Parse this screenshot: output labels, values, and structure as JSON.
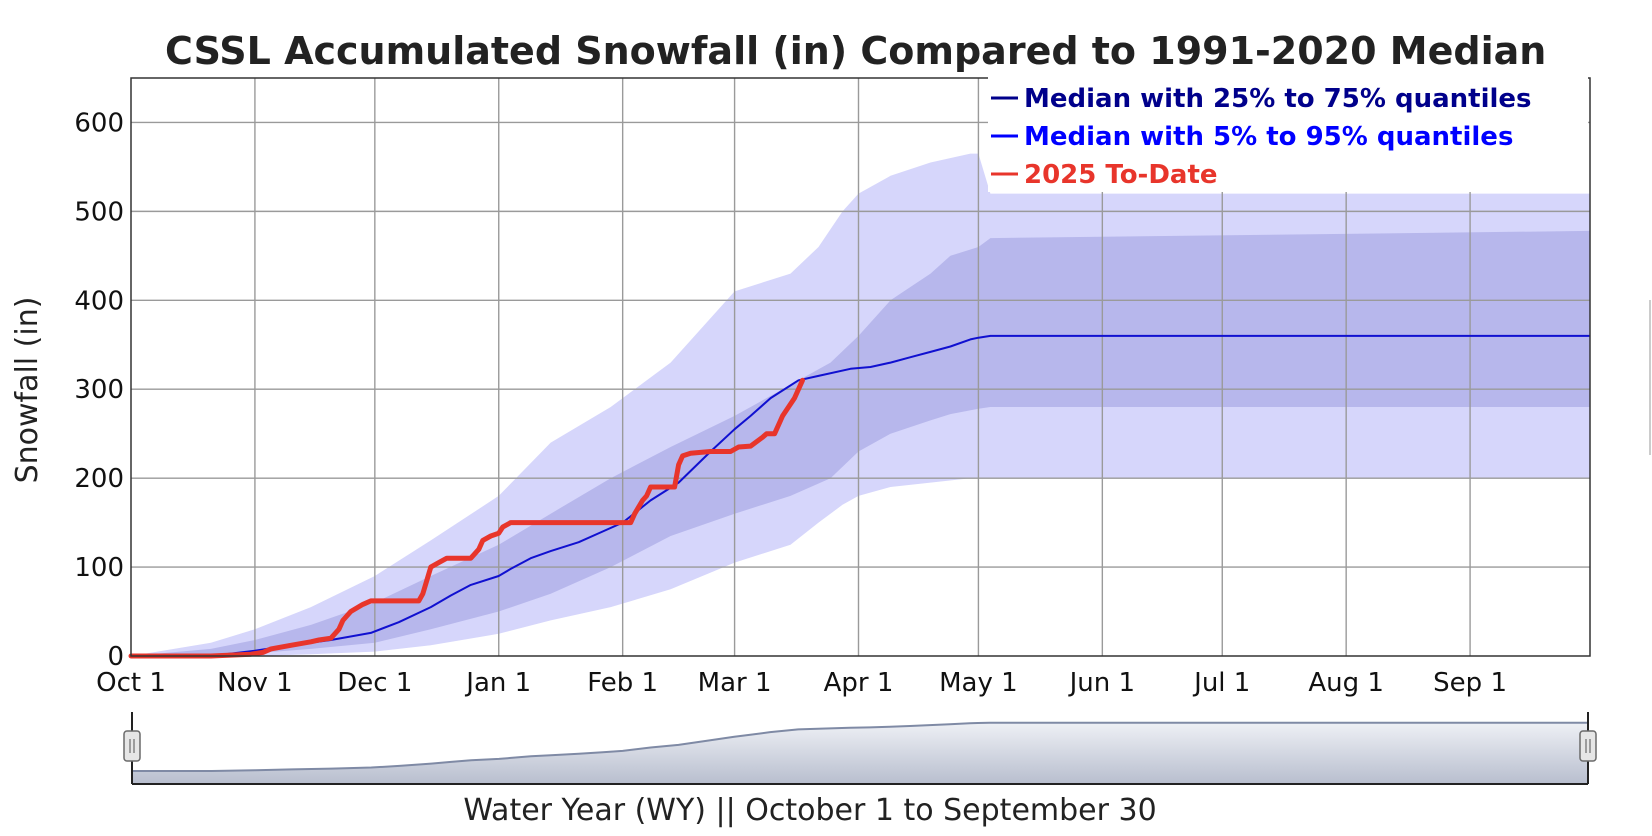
{
  "chart_data": {
    "type": "line",
    "title": "CSSL Accumulated Snowfall (in) Compared to 1991-2020 Median",
    "ylabel": "Snowfall (in)",
    "xlabel": "Water Year (WY) || October 1 to September 30",
    "ylim": [
      0,
      650
    ],
    "xlim": [
      0,
      365
    ],
    "yticks": [
      0,
      100,
      200,
      300,
      400,
      500,
      600
    ],
    "xticks": [
      {
        "label": "Oct 1",
        "day": 0
      },
      {
        "label": "Nov 1",
        "day": 31
      },
      {
        "label": "Dec 1",
        "day": 61
      },
      {
        "label": "Jan 1",
        "day": 92
      },
      {
        "label": "Feb 1",
        "day": 123
      },
      {
        "label": "Mar 1",
        "day": 151
      },
      {
        "label": "Apr 1",
        "day": 182
      },
      {
        "label": "May 1",
        "day": 212
      },
      {
        "label": "Jun 1",
        "day": 243
      },
      {
        "label": "Jul 1",
        "day": 273
      },
      {
        "label": "Aug 1",
        "day": 304
      },
      {
        "label": "Sep 1",
        "day": 335
      }
    ],
    "legend_position": "top-right",
    "legend": [
      {
        "label": "Median with 25% to 75% quantiles",
        "color": "#00008b"
      },
      {
        "label": "Median with 5% to 95% quantiles",
        "color": "#0000ff"
      },
      {
        "label": "2025 To-Date",
        "color": "#e8352b"
      }
    ],
    "colors": {
      "band_5_95": "#d6d6fb",
      "band_25_75": "#b7b7ec",
      "median": "#1010d0",
      "current": "#e8352b",
      "navigator_fill": "#d3d7e2",
      "navigator_line": "#7f8aa5"
    },
    "series": [
      {
        "name": "Median",
        "days": [
          0,
          20,
          31,
          40,
          50,
          60,
          67,
          75,
          80,
          85,
          92,
          95,
          100,
          105,
          112,
          118,
          123,
          130,
          137,
          145,
          151,
          155,
          160,
          167,
          172,
          180,
          185,
          190,
          195,
          200,
          205,
          210,
          212,
          215,
          365
        ],
        "values": [
          0,
          0,
          6,
          12,
          18,
          26,
          38,
          55,
          68,
          80,
          90,
          98,
          110,
          118,
          128,
          140,
          150,
          175,
          195,
          230,
          255,
          270,
          290,
          310,
          315,
          323,
          325,
          330,
          336,
          342,
          348,
          356,
          358,
          360,
          360
        ]
      },
      {
        "name": "Band 25-75",
        "days": [
          0,
          20,
          31,
          45,
          61,
          75,
          92,
          105,
          120,
          135,
          151,
          165,
          175,
          182,
          190,
          200,
          205,
          212,
          215,
          365
        ],
        "upper": [
          0,
          8,
          18,
          35,
          60,
          90,
          125,
          160,
          200,
          235,
          270,
          305,
          330,
          360,
          400,
          430,
          450,
          460,
          470,
          478
        ],
        "lower": [
          0,
          0,
          3,
          8,
          15,
          30,
          50,
          70,
          100,
          135,
          160,
          180,
          200,
          230,
          250,
          265,
          272,
          278,
          280,
          280
        ]
      },
      {
        "name": "Band 5-95",
        "days": [
          0,
          20,
          31,
          45,
          61,
          75,
          92,
          105,
          120,
          135,
          151,
          165,
          172,
          178,
          182,
          190,
          200,
          210,
          212,
          215,
          365
        ],
        "upper": [
          0,
          15,
          30,
          55,
          90,
          130,
          180,
          240,
          280,
          330,
          410,
          430,
          460,
          500,
          520,
          540,
          555,
          565,
          565,
          520,
          520
        ],
        "lower": [
          0,
          0,
          0,
          2,
          5,
          12,
          25,
          40,
          55,
          75,
          105,
          125,
          150,
          170,
          180,
          190,
          195,
          200,
          200,
          200,
          200
        ]
      },
      {
        "name": "2025 To-Date",
        "days": [
          0,
          20,
          30,
          33,
          35,
          40,
          45,
          47,
          50,
          52,
          53,
          55,
          58,
          60,
          68,
          72,
          73,
          75,
          77,
          79,
          80,
          85,
          87,
          88,
          90,
          92,
          93,
          95,
          110,
          125,
          126,
          128,
          129,
          130,
          133,
          136,
          137,
          138,
          140,
          145,
          150,
          152,
          155,
          158,
          159,
          161,
          163,
          166,
          168
        ],
        "values": [
          0,
          0,
          2,
          4,
          8,
          12,
          16,
          18,
          20,
          30,
          40,
          50,
          58,
          62,
          62,
          62,
          70,
          100,
          105,
          110,
          110,
          110,
          120,
          130,
          135,
          138,
          145,
          150,
          150,
          150,
          160,
          175,
          180,
          190,
          190,
          190,
          215,
          225,
          228,
          230,
          230,
          235,
          236,
          246,
          250,
          250,
          270,
          290,
          310
        ]
      }
    ]
  }
}
